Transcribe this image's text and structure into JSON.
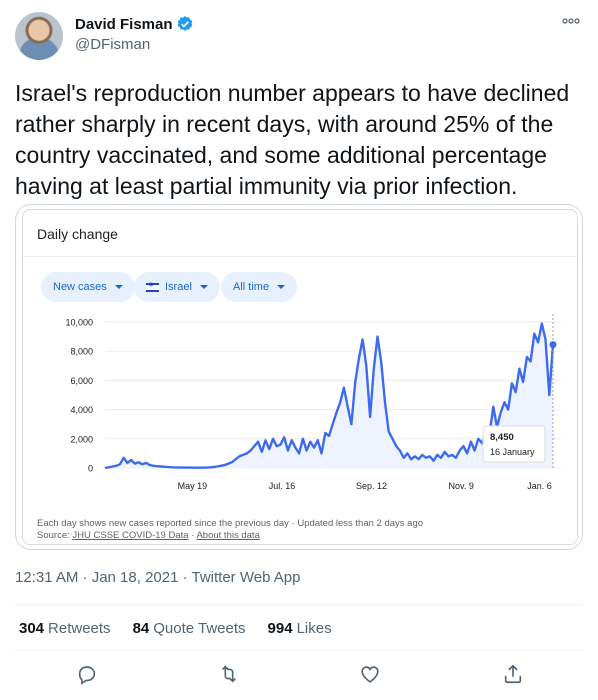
{
  "author": {
    "display_name": "David Fisman",
    "handle": "@DFisman",
    "verified": true
  },
  "tweet": {
    "text": "Israel's reproduction number appears to have declined rather sharply in recent days, with around 25% of the country vaccinated, and some additional percentage having at least partial immunity via prior infection.",
    "timestamp": "12:31 AM · Jan 18, 2021 · Twitter Web App"
  },
  "embedded_card": {
    "title": "Daily change",
    "chips": [
      {
        "label": "New cases"
      },
      {
        "label": "Israel"
      },
      {
        "label": "All time"
      }
    ],
    "footnote_line1": "Each day shows new cases reported since the previous day · Updated less than 2 days ago",
    "source_prefix": "Source:",
    "source_link": "JHU CSSE COVID-19 Data",
    "about_link": "About this data",
    "tooltip_value": "8,450",
    "tooltip_date": "16 January"
  },
  "chart_data": {
    "type": "line",
    "title": "Daily change",
    "xlabel": "",
    "ylabel": "",
    "x_tick_labels": [
      "May 19",
      "Jul. 16",
      "Sep. 12",
      "Nov. 9",
      "Jan. 6"
    ],
    "y_tick_labels": [
      "0",
      "2,000",
      "4,000",
      "6,000",
      "8,000",
      "10,000"
    ],
    "ylim": [
      0,
      10000
    ],
    "grid": true,
    "series": [
      {
        "values": [
          0,
          50,
          100,
          150,
          250,
          700,
          350,
          550,
          300,
          400,
          250,
          350,
          200,
          150,
          120,
          100,
          80,
          60,
          50,
          40,
          30,
          30,
          30,
          25,
          20,
          20,
          20,
          30,
          40,
          60,
          100,
          150,
          200,
          300,
          400,
          600,
          800,
          900,
          1000,
          1200,
          1500,
          1800,
          1100,
          1900,
          1300,
          2000,
          1500,
          1600,
          2100,
          1200,
          1900,
          1400,
          1000,
          2000,
          1200,
          1800,
          1400,
          1900,
          1000,
          2400,
          2200,
          3000,
          3800,
          4500,
          5500,
          4200,
          3000,
          5800,
          7500,
          8800,
          7000,
          3500,
          6800,
          9000,
          7200,
          4500,
          2500,
          2000,
          1500,
          1200,
          700,
          1000,
          600,
          800,
          600,
          900,
          700,
          800,
          500,
          900,
          700,
          1100,
          800,
          900,
          700,
          1200,
          1500,
          1000,
          1800,
          1200,
          2000,
          1700,
          2500,
          2300,
          4200,
          2800,
          3800,
          4500,
          4000,
          5800,
          5200,
          6800,
          5900,
          7600,
          7300,
          9200,
          8600,
          9900,
          8800,
          5000,
          8450
        ]
      }
    ]
  },
  "stats": {
    "retweets_count": "304",
    "retweets_label": "Retweets",
    "quotes_count": "84",
    "quotes_label": "Quote Tweets",
    "likes_count": "994",
    "likes_label": "Likes"
  },
  "colors": {
    "line": "#3c6bf0",
    "chip_bg": "#e8f0fe",
    "chip_text": "#1967d2",
    "verified": "#1d9bf0"
  },
  "icons": {
    "verified": "verified-badge-icon",
    "more": "more-icon",
    "reply": "reply-icon",
    "retweet": "retweet-icon",
    "like": "like-icon",
    "share": "share-icon"
  }
}
